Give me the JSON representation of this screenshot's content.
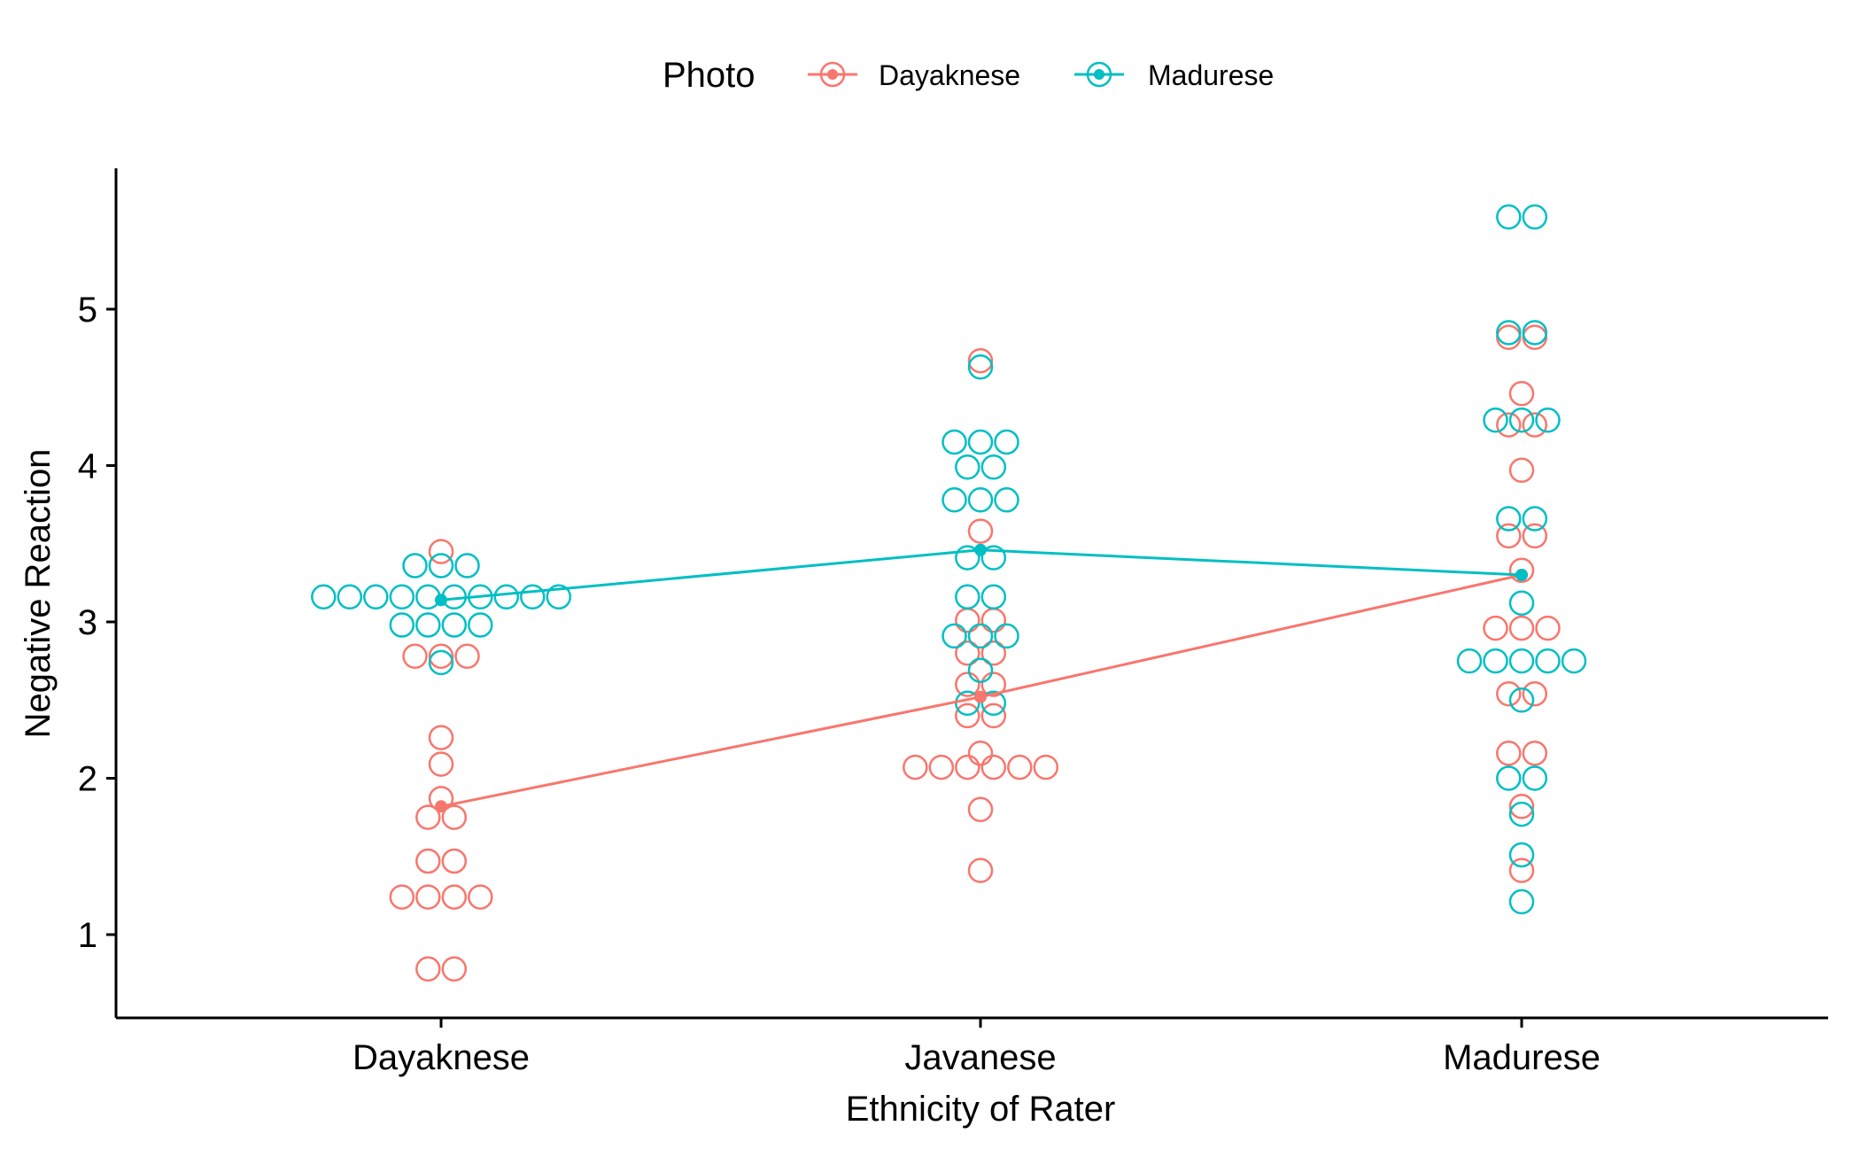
{
  "chart_data": {
    "type": "scatter",
    "subtype": "dotplot-with-mean-lines",
    "xlabel": "Ethnicity of Rater",
    "ylabel": "Negative Reaction",
    "categories": [
      "Dayaknese",
      "Javanese",
      "Madurese"
    ],
    "yticks": [
      1,
      2,
      3,
      4,
      5
    ],
    "ylim": [
      0.5,
      5.9
    ],
    "legend": {
      "title": "Photo",
      "position": "top"
    },
    "grid": false,
    "series": [
      {
        "name": "Dayaknese",
        "color": "#F8766D",
        "means": [
          1.82,
          2.52,
          3.3
        ],
        "points": [
          [
            0.78,
            0.78,
            1.24,
            1.24,
            1.24,
            1.24,
            1.47,
            1.47,
            1.75,
            1.75,
            1.87,
            2.09,
            2.26,
            2.78,
            2.78,
            2.78,
            3.45
          ],
          [
            1.41,
            1.8,
            2.07,
            2.07,
            2.07,
            2.07,
            2.07,
            2.07,
            2.16,
            2.4,
            2.4,
            2.6,
            2.6,
            2.8,
            2.8,
            3.01,
            3.01,
            3.58,
            4.67
          ],
          [
            1.41,
            1.82,
            2.16,
            2.16,
            2.54,
            2.54,
            2.96,
            2.96,
            2.96,
            3.33,
            3.55,
            3.55,
            3.97,
            4.26,
            4.26,
            4.46,
            4.82,
            4.82
          ]
        ]
      },
      {
        "name": "Madurese",
        "color": "#00BFC4",
        "means": [
          3.14,
          3.46,
          3.3
        ],
        "points": [
          [
            2.74,
            2.98,
            2.98,
            2.98,
            2.98,
            3.16,
            3.16,
            3.16,
            3.16,
            3.16,
            3.16,
            3.16,
            3.16,
            3.16,
            3.16,
            3.36,
            3.36,
            3.36
          ],
          [
            2.48,
            2.48,
            2.69,
            2.91,
            2.91,
            2.91,
            3.16,
            3.16,
            3.41,
            3.41,
            3.78,
            3.78,
            3.78,
            3.99,
            3.99,
            4.15,
            4.15,
            4.15,
            4.63
          ],
          [
            1.21,
            1.51,
            1.77,
            2.0,
            2.0,
            2.5,
            2.75,
            2.75,
            2.75,
            2.75,
            2.75,
            3.12,
            3.66,
            3.66,
            4.29,
            4.29,
            4.29,
            4.85,
            4.85,
            5.59,
            5.59
          ]
        ]
      }
    ]
  }
}
